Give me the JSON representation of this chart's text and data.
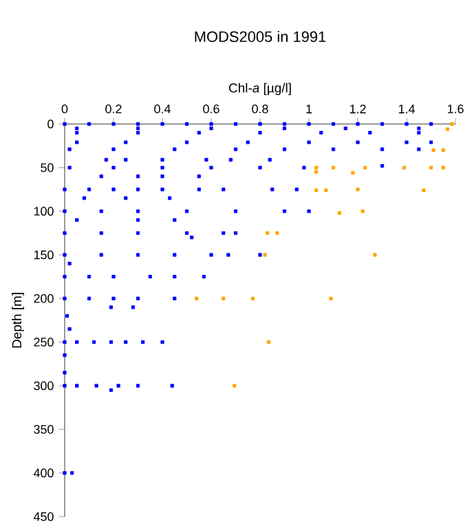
{
  "chart_data": {
    "type": "scatter",
    "title": "MODS2005 in 1991",
    "xlabel": "Chl-*a* [µg/l]",
    "ylabel": "Depth [m]",
    "xlim": [
      0,
      1.6
    ],
    "xticks": [
      0,
      0.2,
      0.4,
      0.6,
      0.8,
      1,
      1.2,
      1.4,
      1.6
    ],
    "ylim": [
      450,
      0
    ],
    "yticks": [
      0,
      50,
      100,
      150,
      200,
      250,
      300,
      350,
      400,
      450
    ],
    "marker": "square",
    "series": [
      {
        "color": "#0000ff",
        "x": [
          0,
          0.1,
          0.2,
          0.3,
          0.4,
          0.5,
          0.6,
          0.7,
          0.8,
          0.9,
          1.0,
          1.1,
          1.2,
          1.3,
          1.4,
          1.5,
          0.05,
          0.3,
          0.6,
          0.9,
          1.15,
          1.45,
          0.05,
          0.3,
          0.55,
          0.8,
          1.05,
          1.25,
          1.45,
          0.05,
          0.25,
          0.5,
          0.75,
          1.0,
          1.2,
          1.4,
          1.5,
          0.02,
          0.2,
          0.45,
          0.7,
          0.9,
          1.1,
          1.3,
          1.45,
          0.17,
          0.25,
          0.4,
          0.58,
          0.68,
          0.84,
          0.02,
          0.2,
          0.4,
          0.6,
          0.8,
          0.98,
          1.3,
          0.15,
          0.3,
          0.4,
          0.55,
          0,
          0.1,
          0.2,
          0.3,
          0.4,
          0.55,
          0.65,
          0.85,
          0.95,
          0.08,
          0.25,
          0.43,
          0,
          0.15,
          0.3,
          0.5,
          0.7,
          0.9,
          1.0,
          0.05,
          0.3,
          0.45,
          0,
          0.15,
          0.3,
          0.5,
          0.65,
          0.7,
          0.52,
          0,
          0.15,
          0.3,
          0.45,
          0.6,
          0.67,
          0.8,
          0.02,
          0,
          0.1,
          0.2,
          0.35,
          0.45,
          0.57,
          0,
          0.1,
          0.2,
          0.3,
          0.45,
          0.19,
          0.28,
          0.01,
          0.02,
          0,
          0.05,
          0.12,
          0.19,
          0.25,
          0.32,
          0.4,
          0,
          0,
          0,
          0.05,
          0.13,
          0.22,
          0.3,
          0.44,
          0.19,
          0,
          0.03
        ],
        "values": [
          0,
          0,
          0,
          0,
          0,
          0,
          0,
          0,
          0,
          0,
          0,
          0,
          0,
          0,
          0,
          0,
          5,
          5,
          5,
          5,
          5,
          5,
          10,
          10,
          10,
          10,
          10,
          10,
          10,
          21,
          21,
          21,
          21,
          21,
          21,
          21,
          21,
          29,
          29,
          29,
          29,
          29,
          29,
          29,
          29,
          41,
          41,
          41,
          41,
          41,
          41,
          50,
          50,
          50,
          50,
          50,
          50,
          48,
          60,
          60,
          60,
          60,
          75,
          75,
          75,
          75,
          75,
          75,
          75,
          75,
          75,
          85,
          85,
          85,
          100,
          100,
          100,
          100,
          100,
          100,
          100,
          110,
          110,
          110,
          125,
          125,
          125,
          125,
          125,
          125,
          130,
          150,
          150,
          150,
          150,
          150,
          150,
          150,
          160,
          175,
          175,
          175,
          175,
          175,
          175,
          200,
          200,
          200,
          200,
          200,
          210,
          210,
          220,
          235,
          250,
          250,
          250,
          250,
          250,
          250,
          250,
          265,
          285,
          300,
          300,
          300,
          300,
          300,
          300,
          305,
          400,
          400
        ]
      },
      {
        "color": "#ffa500",
        "x": [
          1.585,
          1.567,
          1.51,
          1.55,
          1.03,
          1.03,
          1.1,
          1.18,
          1.23,
          1.39,
          1.5,
          1.55,
          1.03,
          1.07,
          1.2,
          1.47,
          1.125,
          1.22,
          0.83,
          0.87,
          0.82,
          1.27,
          0.54,
          0.65,
          0.77,
          1.09,
          0.835,
          0.695
        ],
        "values": [
          0,
          6,
          30,
          30,
          50,
          55,
          50,
          56,
          50,
          50,
          50,
          50,
          76,
          76,
          75,
          76,
          102,
          100,
          125,
          125,
          150,
          150,
          200,
          200,
          200,
          200,
          250,
          300
        ]
      }
    ]
  }
}
